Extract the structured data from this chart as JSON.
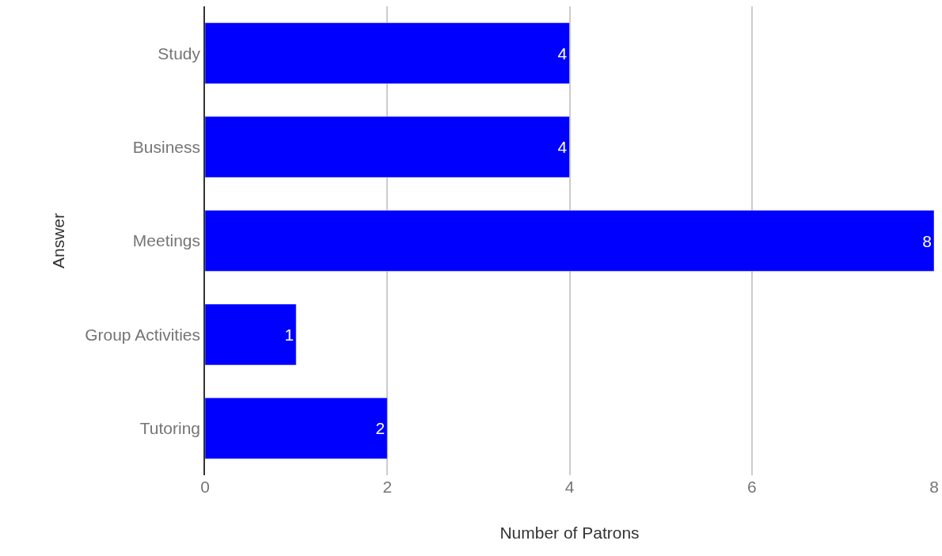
{
  "chart_data": {
    "type": "bar",
    "orientation": "horizontal",
    "xlabel": "Number of Patrons",
    "ylabel": "Answer",
    "categories": [
      "Study",
      "Business",
      "Meetings",
      "Group Activities",
      "Tutoring"
    ],
    "values": [
      4,
      4,
      8,
      1,
      2
    ],
    "color": "#0000ff",
    "data_labels": true,
    "xlim": [
      0,
      8
    ],
    "xticks": [
      0,
      2,
      4,
      6,
      8
    ],
    "grid": "x",
    "legend": false
  }
}
